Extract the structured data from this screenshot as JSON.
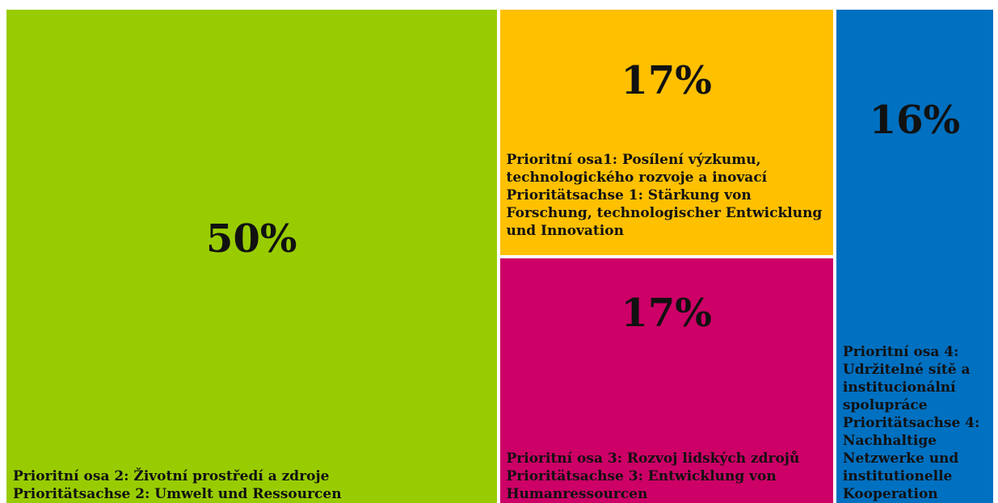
{
  "chart_data": {
    "type": "treemap",
    "categories": [
      "Prioritní osa 2: Životní prostředí a zdroje\nPrioritätsachse 2: Umwelt und Ressourcen",
      "Prioritní osa1: Posílení výzkumu, technologického rozvoje a inovací\nPrioritätsachse 1:  Stärkung von Forschung, technologischer Entwicklung und Innovation",
      "Prioritní osa 3: Rozvoj lidských zdrojů\nPrioritätsachse 3: Entwicklung von Humanressourcen",
      "Prioritní osa 4: Udržitelné sítě a institucionální spolupráce\nPrioritätsachse 4: Nachhaltige Netzwerke und institutionelle Kooperation"
    ],
    "values": [
      50,
      17,
      17,
      16
    ],
    "value_labels": [
      "50%",
      "17%",
      "17%",
      "16%"
    ],
    "colors": [
      "#99cc00",
      "#ffc000",
      "#cc0066",
      "#0070c0"
    ]
  }
}
